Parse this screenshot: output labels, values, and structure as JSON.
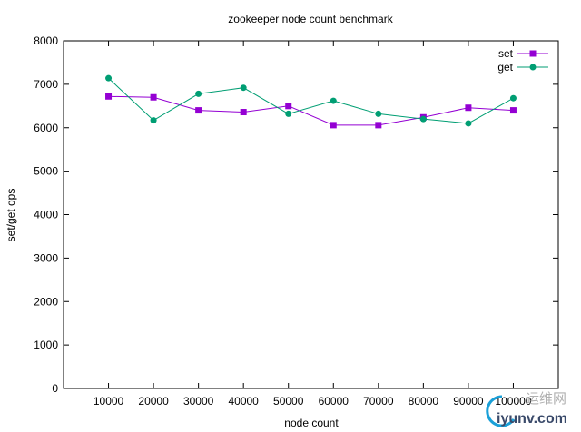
{
  "chart_data": {
    "type": "line",
    "title": "zookeeper node count benchmark",
    "xlabel": "node count",
    "ylabel": "set/get ops",
    "categories": [
      10000,
      20000,
      30000,
      40000,
      50000,
      60000,
      70000,
      80000,
      90000,
      100000
    ],
    "xlim": [
      0,
      110000
    ],
    "ylim": [
      0,
      8000
    ],
    "yticks": [
      0,
      1000,
      2000,
      3000,
      4000,
      5000,
      6000,
      7000,
      8000
    ],
    "xticks": [
      "10000",
      "20000",
      "30000",
      "40000",
      "50000",
      "60000",
      "70000",
      "80000",
      "90000",
      "100000"
    ],
    "legend_position": "top-right",
    "series": [
      {
        "name": "set",
        "color": "#9400d3",
        "marker": "square",
        "values": [
          6720,
          6700,
          6400,
          6360,
          6500,
          6060,
          6060,
          6240,
          6460,
          6400
        ]
      },
      {
        "name": "get",
        "color": "#009e73",
        "marker": "circle",
        "values": [
          7140,
          6170,
          6780,
          6920,
          6320,
          6620,
          6320,
          6200,
          6100,
          6680
        ]
      }
    ]
  },
  "watermark": {
    "cn_text": "运维网",
    "site": "iyunv.com"
  }
}
